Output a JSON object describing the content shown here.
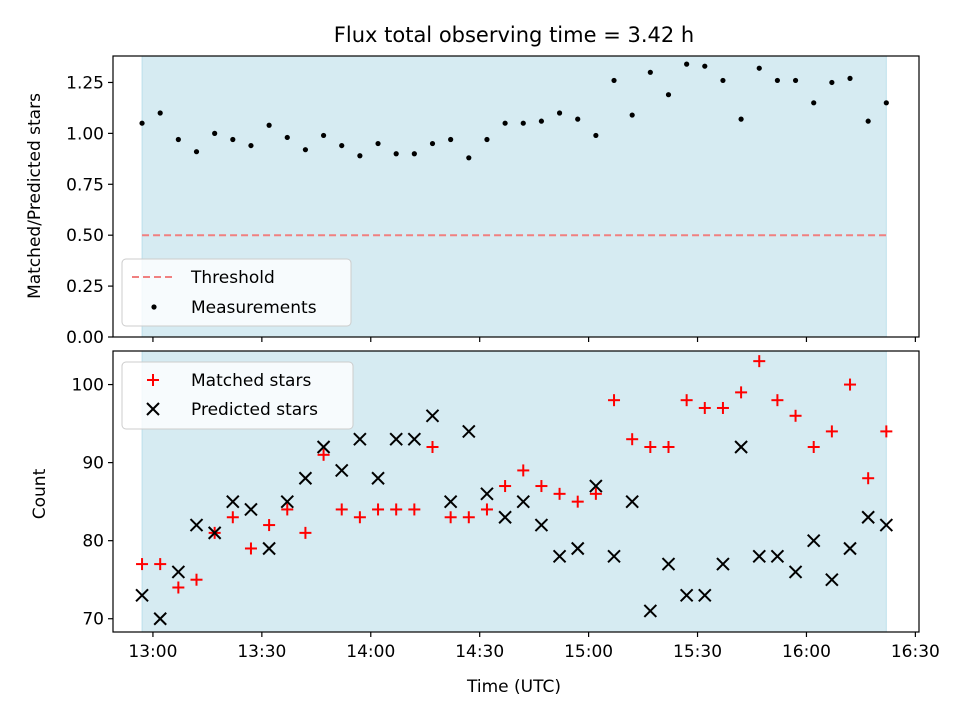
{
  "chart_data": [
    {
      "type": "scatter",
      "title": "Flux total observing time = 3.42 h",
      "xlabel": "",
      "ylabel": "Matched/Predicted stars",
      "ylim": [
        0,
        1.38
      ],
      "yticks": [
        "0.00",
        "0.25",
        "0.50",
        "0.75",
        "1.00",
        "1.25"
      ],
      "ytick_values": [
        0,
        0.25,
        0.5,
        0.75,
        1.0,
        1.25
      ],
      "threshold": {
        "name": "Threshold",
        "value": 0.5,
        "color": "#f08080",
        "style": "dashed"
      },
      "observing_window": {
        "start": "12:57",
        "end": "16:22",
        "color": "#add8e6"
      },
      "legend_placement": "lower-left",
      "series": [
        {
          "name": "Measurements",
          "color": "#000000",
          "marker": "dot",
          "x": [
            "12:57",
            "13:02",
            "13:07",
            "13:12",
            "13:17",
            "13:22",
            "13:27",
            "13:32",
            "13:37",
            "13:42",
            "13:47",
            "13:52",
            "13:57",
            "14:02",
            "14:07",
            "14:12",
            "14:17",
            "14:22",
            "14:27",
            "14:32",
            "14:37",
            "14:42",
            "14:47",
            "14:52",
            "14:57",
            "15:02",
            "15:07",
            "15:12",
            "15:17",
            "15:22",
            "15:27",
            "15:32",
            "15:37",
            "15:42",
            "15:47",
            "15:52",
            "15:57",
            "16:02",
            "16:07",
            "16:12",
            "16:17",
            "16:22"
          ],
          "y": [
            1.05,
            1.1,
            0.97,
            0.91,
            1.0,
            0.97,
            0.94,
            1.04,
            0.98,
            0.92,
            0.99,
            0.94,
            0.89,
            0.95,
            0.9,
            0.9,
            0.95,
            0.97,
            0.88,
            0.97,
            1.05,
            1.05,
            1.06,
            1.1,
            1.07,
            0.99,
            1.26,
            1.09,
            1.3,
            1.19,
            1.34,
            1.33,
            1.26,
            1.07,
            1.32,
            1.26,
            1.26,
            1.15,
            1.25,
            1.27,
            1.06,
            1.15
          ]
        }
      ]
    },
    {
      "type": "scatter",
      "title": "",
      "xlabel": "Time (UTC)",
      "ylabel": "Count",
      "ylim": [
        68.3,
        104.3
      ],
      "yticks": [
        "70",
        "80",
        "90",
        "100"
      ],
      "ytick_values": [
        70,
        80,
        90,
        100
      ],
      "xlim": [
        "12:49",
        "16:31"
      ],
      "xticks": [
        "13:00",
        "13:30",
        "14:00",
        "14:30",
        "15:00",
        "15:30",
        "16:00",
        "16:30"
      ],
      "observing_window": {
        "start": "12:57",
        "end": "16:22",
        "color": "#add8e6"
      },
      "legend_placement": "upper-left",
      "series": [
        {
          "name": "Matched stars",
          "color": "#ff0000",
          "marker": "plus",
          "x": [
            "12:57",
            "13:02",
            "13:07",
            "13:12",
            "13:17",
            "13:22",
            "13:27",
            "13:32",
            "13:37",
            "13:42",
            "13:47",
            "13:52",
            "13:57",
            "14:02",
            "14:07",
            "14:12",
            "14:17",
            "14:22",
            "14:27",
            "14:32",
            "14:37",
            "14:42",
            "14:47",
            "14:52",
            "14:57",
            "15:02",
            "15:07",
            "15:12",
            "15:17",
            "15:22",
            "15:27",
            "15:32",
            "15:37",
            "15:42",
            "15:47",
            "15:52",
            "15:57",
            "16:02",
            "16:07",
            "16:12",
            "16:17",
            "16:22"
          ],
          "y": [
            77,
            77,
            74,
            75,
            81,
            83,
            79,
            82,
            84,
            81,
            91,
            84,
            83,
            84,
            84,
            84,
            92,
            83,
            83,
            84,
            87,
            89,
            87,
            86,
            85,
            86,
            98,
            93,
            92,
            92,
            98,
            97,
            97,
            99,
            103,
            98,
            96,
            92,
            94,
            100,
            88,
            94
          ]
        },
        {
          "name": "Predicted stars",
          "color": "#000000",
          "marker": "x",
          "x": [
            "12:57",
            "13:02",
            "13:07",
            "13:12",
            "13:17",
            "13:22",
            "13:27",
            "13:32",
            "13:37",
            "13:42",
            "13:47",
            "13:52",
            "13:57",
            "14:02",
            "14:07",
            "14:12",
            "14:17",
            "14:22",
            "14:27",
            "14:32",
            "14:37",
            "14:42",
            "14:47",
            "14:52",
            "14:57",
            "15:02",
            "15:07",
            "15:12",
            "15:17",
            "15:22",
            "15:27",
            "15:32",
            "15:37",
            "15:42",
            "15:47",
            "15:52",
            "15:57",
            "16:02",
            "16:07",
            "16:12",
            "16:17",
            "16:22"
          ],
          "y": [
            73,
            70,
            76,
            82,
            81,
            85,
            84,
            79,
            85,
            88,
            92,
            89,
            93,
            88,
            93,
            93,
            96,
            85,
            94,
            86,
            83,
            85,
            82,
            78,
            79,
            87,
            78,
            85,
            71,
            77,
            73,
            73,
            77,
            92,
            78,
            78,
            76,
            80,
            75,
            79,
            83,
            82
          ]
        }
      ]
    }
  ]
}
